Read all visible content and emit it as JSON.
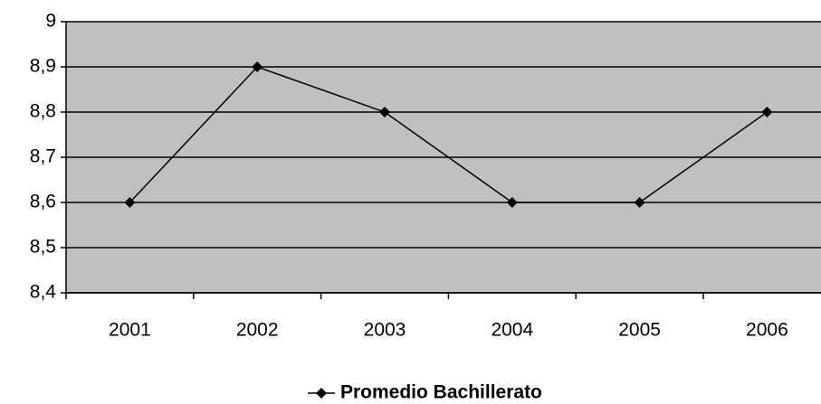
{
  "chart_data": {
    "type": "line",
    "categories": [
      "2001",
      "2002",
      "2003",
      "2004",
      "2005",
      "2006"
    ],
    "series": [
      {
        "name": "Promedio Bachillerato",
        "color": "#000000",
        "values": [
          8.6,
          8.9,
          8.8,
          8.6,
          8.6,
          8.8
        ]
      }
    ],
    "ylim": [
      8.4,
      9
    ],
    "yticks": [
      {
        "value": 8.4,
        "label": "8,4"
      },
      {
        "value": 8.5,
        "label": "8,5"
      },
      {
        "value": 8.6,
        "label": "8,6"
      },
      {
        "value": 8.7,
        "label": "8,7"
      },
      {
        "value": 8.8,
        "label": "8,8"
      },
      {
        "value": 8.9,
        "label": "8,9"
      },
      9
    ],
    "grid": true,
    "legend": "bottom",
    "plot_background": "#c0c0c0"
  }
}
